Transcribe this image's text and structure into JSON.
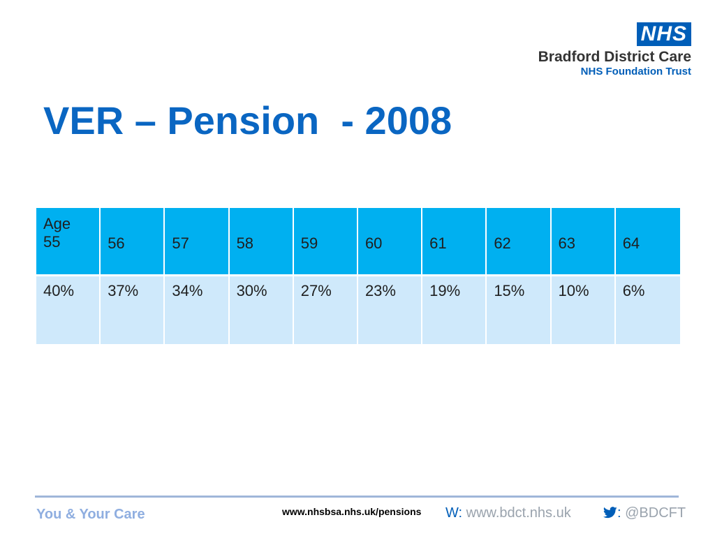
{
  "logo": {
    "badge": "NHS",
    "org_name": "Bradford District Care",
    "org_sub": "NHS Foundation Trust"
  },
  "title": "VER – Pension  - 2008",
  "table": {
    "ages": [
      "Age\n55",
      "56",
      "57",
      "58",
      "59",
      "60",
      "61",
      "62",
      "63",
      "64"
    ],
    "percentages": [
      "40%",
      "37%",
      "34%",
      "30%",
      "27%",
      "23%",
      "19%",
      "15%",
      "10%",
      "6%"
    ]
  },
  "footer": {
    "tagline": "You & Your Care",
    "link": "www.nhsbsa.nhs.uk/pensions",
    "web_label": "W:",
    "web_url": "www.bdct.nhs.uk",
    "twitter_icon": "twitter-bird-icon",
    "twitter_sep": ":",
    "twitter_handle": "@BDCFT"
  },
  "colors": {
    "nhs_blue": "#005EB8",
    "header_row": "#00b0f0",
    "value_row": "#cfe9fb"
  }
}
